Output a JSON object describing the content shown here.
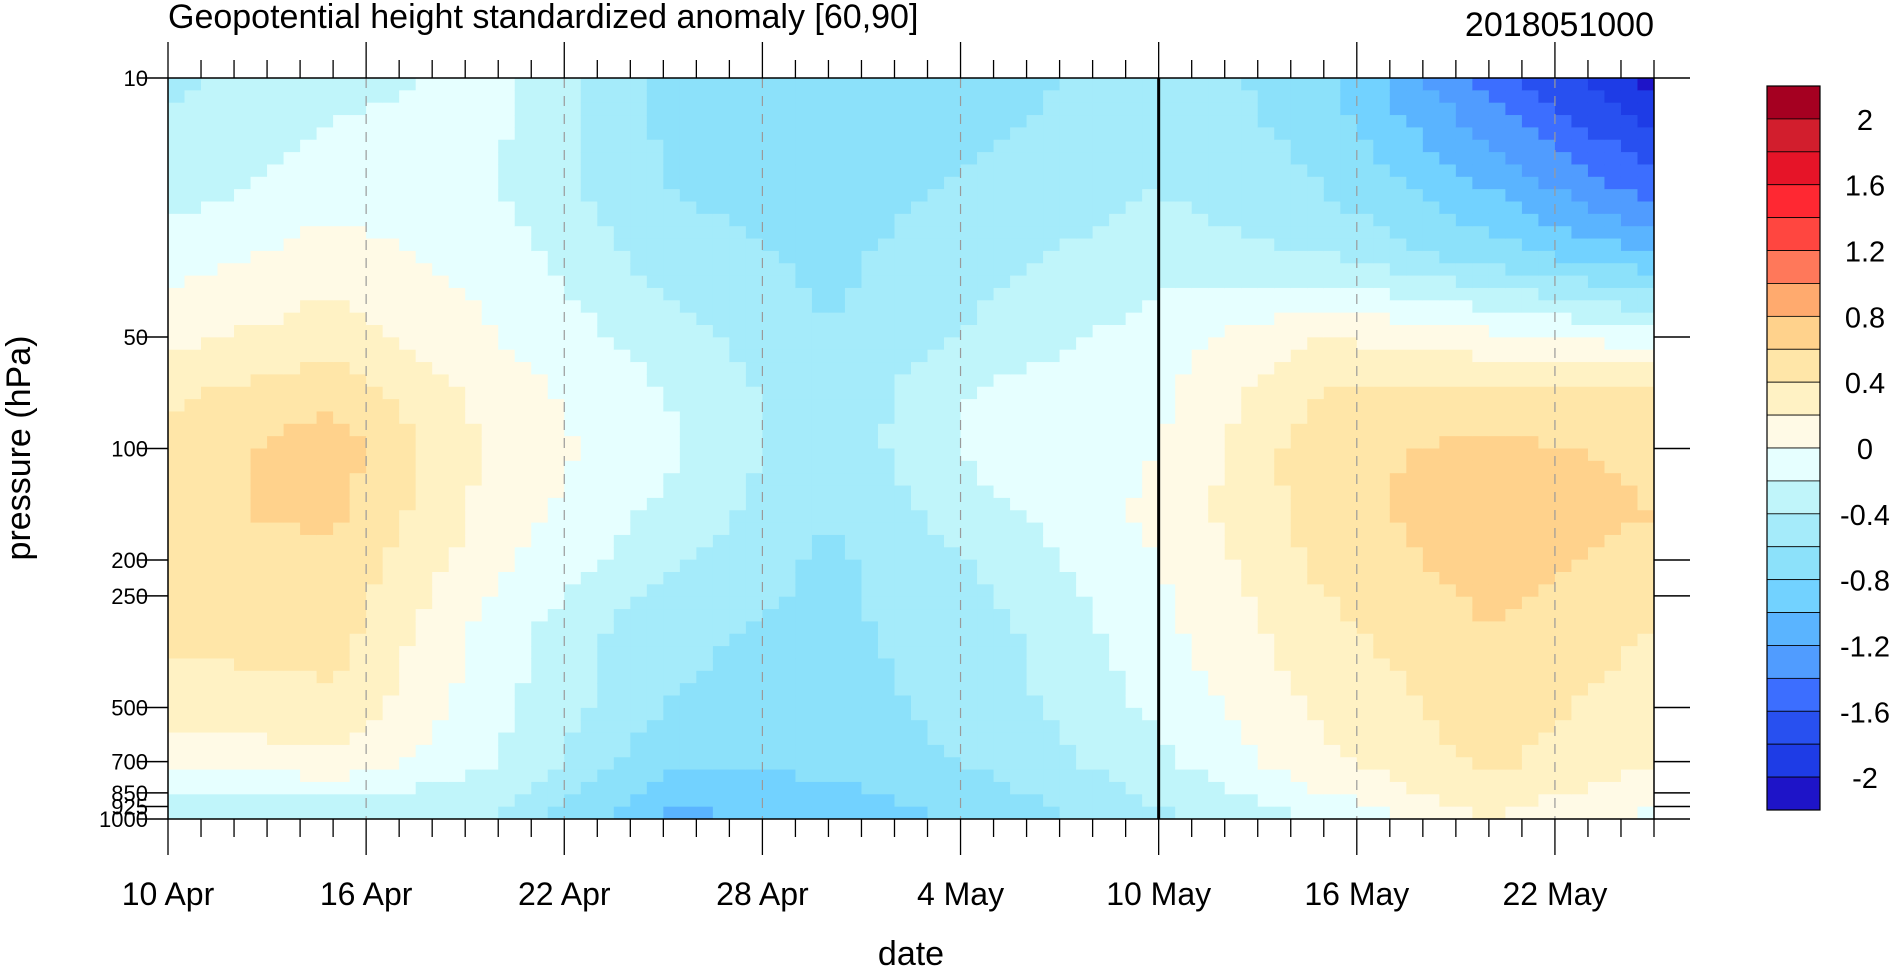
{
  "chart_data": {
    "type": "heatmap",
    "title": "Geopotential height standardized anomaly [60,90]",
    "date_label": "2018051000",
    "xlabel": "date",
    "ylabel": "pressure (hPa)",
    "x_ticks": [
      "10 Apr",
      "16 Apr",
      "22 Apr",
      "28 Apr",
      "4 May",
      "10 May",
      "16 May",
      "22 May"
    ],
    "x_range": [
      "2018-04-10",
      "2018-05-25"
    ],
    "current_date": "2018-05-10",
    "y_scale": "log",
    "y_ticks": [
      10,
      50,
      100,
      200,
      250,
      500,
      700,
      850,
      925,
      1000
    ],
    "y_tick_labels": [
      "10",
      "50",
      "100",
      "200",
      "250",
      "500",
      "700",
      "850",
      "925",
      "1000"
    ],
    "ylim": [
      1000,
      10
    ],
    "colorbar": {
      "labels": [
        "2",
        "1.6",
        "1.2",
        "0.8",
        "0.4",
        "0",
        "-0.4",
        "-0.8",
        "-1.2",
        "-1.6",
        "-2"
      ],
      "levels": [
        -2.2,
        -2,
        -1.8,
        -1.6,
        -1.4,
        -1.2,
        -1,
        -0.8,
        -0.6,
        -0.4,
        -0.2,
        0,
        0.2,
        0.4,
        0.6,
        0.8,
        1,
        1.2,
        1.4,
        1.6,
        1.8,
        2,
        2.2
      ],
      "colors": [
        "#1e14c8",
        "#1e3ce6",
        "#2850f0",
        "#3c6eff",
        "#509cff",
        "#5ab4ff",
        "#72d2ff",
        "#8ce1fa",
        "#a5ebfa",
        "#c0f5fa",
        "#e6ffff",
        "#fffae6",
        "#fff2c4",
        "#ffe6a8",
        "#ffd28c",
        "#ffaa6e",
        "#ff785a",
        "#ff4640",
        "#ff2832",
        "#e61428",
        "#d21e2d",
        "#a50021"
      ]
    },
    "dates": [
      "04-10",
      "04-15",
      "04-20",
      "04-25",
      "04-30",
      "05-05",
      "05-10",
      "05-15",
      "05-20",
      "05-25"
    ],
    "levels_hPa": [
      10,
      20,
      30,
      50,
      70,
      100,
      150,
      200,
      300,
      500,
      700,
      850,
      925,
      1000
    ],
    "values": [
      [
        -0.45,
        -0.25,
        -0.15,
        -0.65,
        -0.75,
        -0.7,
        -0.45,
        -0.75,
        -1.5,
        -2.1
      ],
      [
        -0.3,
        -0.1,
        -0.2,
        -0.6,
        -0.7,
        -0.55,
        -0.4,
        -0.6,
        -1.0,
        -1.5
      ],
      [
        -0.1,
        0.1,
        -0.1,
        -0.5,
        -0.65,
        -0.45,
        -0.3,
        -0.4,
        -0.7,
        -1.0
      ],
      [
        0.15,
        0.3,
        0.0,
        -0.3,
        -0.6,
        -0.35,
        -0.1,
        0.2,
        0.05,
        -0.1
      ],
      [
        0.35,
        0.55,
        0.1,
        -0.2,
        -0.55,
        -0.15,
        -0.05,
        0.4,
        0.45,
        0.45
      ],
      [
        0.5,
        0.7,
        0.15,
        -0.15,
        -0.55,
        -0.1,
        0.0,
        0.55,
        0.65,
        0.55
      ],
      [
        0.55,
        0.65,
        0.1,
        -0.25,
        -0.6,
        -0.25,
        0.05,
        0.5,
        0.75,
        0.6
      ],
      [
        0.5,
        0.55,
        0.05,
        -0.35,
        -0.65,
        -0.35,
        0.0,
        0.45,
        0.7,
        0.5
      ],
      [
        0.45,
        0.5,
        -0.1,
        -0.55,
        -0.65,
        -0.45,
        -0.05,
        0.35,
        0.6,
        0.4
      ],
      [
        0.3,
        0.35,
        -0.15,
        -0.6,
        -0.7,
        -0.5,
        -0.15,
        0.25,
        0.5,
        0.3
      ],
      [
        0.05,
        0.15,
        -0.2,
        -0.75,
        -0.75,
        -0.55,
        -0.25,
        0.15,
        0.45,
        0.2
      ],
      [
        -0.2,
        -0.15,
        -0.3,
        -0.9,
        -0.85,
        -0.65,
        -0.35,
        0.0,
        0.35,
        0.05
      ],
      [
        -0.3,
        -0.25,
        -0.35,
        -1.0,
        -0.9,
        -0.7,
        -0.4,
        -0.1,
        0.25,
        0.0
      ],
      [
        -0.35,
        -0.3,
        -0.4,
        -1.05,
        -0.95,
        -0.75,
        -0.45,
        -0.15,
        0.2,
        -0.05
      ]
    ]
  }
}
